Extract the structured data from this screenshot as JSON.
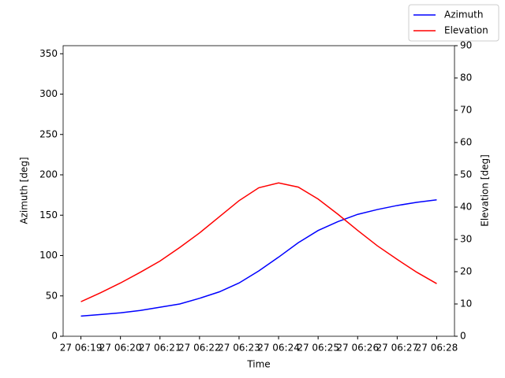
{
  "chart_data": {
    "type": "line",
    "x_label": "Time",
    "y_label": "Azimuth [deg]",
    "y2_label": "Elevation [deg]",
    "x": [
      19,
      19.5,
      20,
      20.5,
      21,
      21.5,
      22,
      22.5,
      23,
      23.5,
      24,
      24.5,
      25,
      25.5,
      26,
      26.5,
      27,
      27.5,
      28
    ],
    "xlim": [
      18.55,
      28.45
    ],
    "xticks": [
      {
        "value": 19,
        "label": "27 06:19"
      },
      {
        "value": 20,
        "label": "27 06:20"
      },
      {
        "value": 21,
        "label": "27 06:21"
      },
      {
        "value": 22,
        "label": "27 06:22"
      },
      {
        "value": 23,
        "label": "27 06:23"
      },
      {
        "value": 24,
        "label": "27 06:24"
      },
      {
        "value": 25,
        "label": "27 06:25"
      },
      {
        "value": 26,
        "label": "27 06:26"
      },
      {
        "value": 27,
        "label": "27 06:27"
      },
      {
        "value": 28,
        "label": "27 06:28"
      }
    ],
    "ylim": [
      0,
      360
    ],
    "yticks": [
      0,
      50,
      100,
      150,
      200,
      250,
      300,
      350
    ],
    "y2lim": [
      0,
      90
    ],
    "y2ticks": [
      0,
      10,
      20,
      30,
      40,
      50,
      60,
      70,
      80,
      90
    ],
    "legend": "upper right",
    "series": [
      {
        "name": "Azimuth",
        "color": "#0000ff",
        "values": [
          25,
          27,
          29,
          32,
          36,
          40,
          47,
          55,
          66,
          81,
          98,
          116,
          131,
          142,
          151,
          157,
          162,
          166,
          169
        ]
      },
      {
        "name": "Elevation",
        "color": "#ff0000",
        "axis": "y2",
        "values": [
          10.7,
          13.5,
          16.5,
          19.8,
          23.3,
          27.5,
          32,
          37,
          42,
          46,
          47.5,
          46.2,
          42.5,
          37.8,
          32.8,
          28,
          23.8,
          19.8,
          16.3
        ]
      }
    ]
  }
}
